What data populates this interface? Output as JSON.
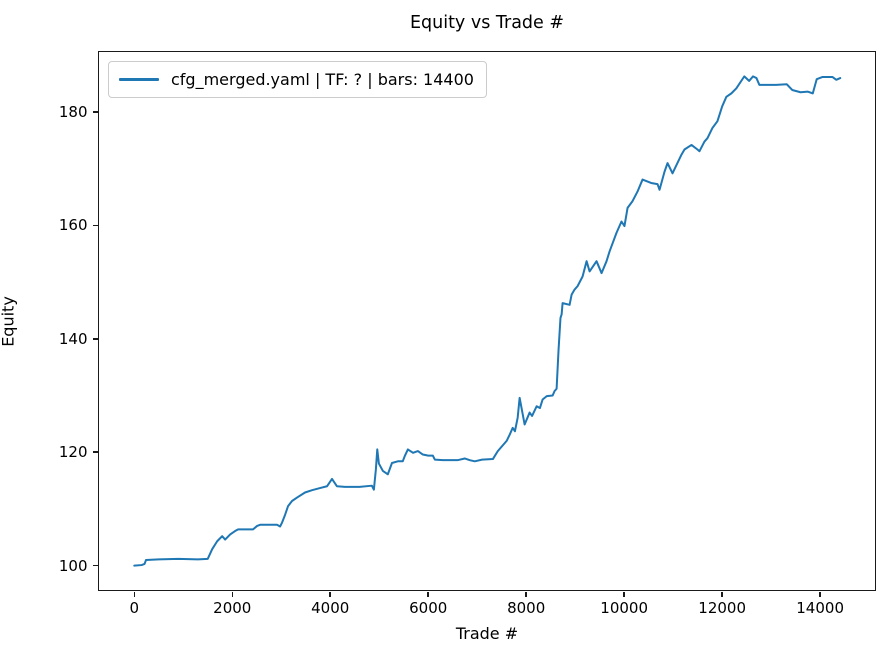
{
  "figure": {
    "title": "Equity vs Trade #",
    "xlabel": "Trade #",
    "ylabel": "Equity",
    "legend": {
      "label": "cfg_merged.yaml | TF: ? | bars: 14400",
      "line_color": "#1f77b4"
    }
  },
  "chart_data": {
    "type": "line",
    "title": "Equity vs Trade #",
    "xlabel": "Trade #",
    "ylabel": "Equity",
    "grid": false,
    "legend_position": "upper left",
    "legend_entries": [
      "cfg_merged.yaml | TF: ? | bars: 14400"
    ],
    "line_color": "#1f77b4",
    "line_width": 2,
    "xlim": [
      -720,
      15120
    ],
    "ylim": [
      95.7,
      190.6
    ],
    "xticks": [
      0,
      2000,
      4000,
      6000,
      8000,
      10000,
      12000,
      14000
    ],
    "yticks": [
      100,
      120,
      140,
      160,
      180
    ],
    "series": [
      {
        "name": "cfg_merged.yaml | TF: ? | bars: 14400",
        "x": [
          1,
          150,
          210,
          240,
          500,
          900,
          1300,
          1500,
          1590,
          1692,
          1794,
          1855,
          1957,
          2058,
          2120,
          2425,
          2507,
          2568,
          2914,
          2976,
          3017,
          3080,
          3139,
          3220,
          3322,
          3485,
          3628,
          3800,
          3934,
          4036,
          4138,
          4300,
          4600,
          4850,
          4891,
          4932,
          4960,
          4993,
          5075,
          5175,
          5260,
          5380,
          5480,
          5520,
          5585,
          5690,
          5790,
          5890,
          6000,
          6095,
          6135,
          6300,
          6600,
          6745,
          6850,
          6950,
          7100,
          7320,
          7420,
          7601,
          7663,
          7724,
          7770,
          7826,
          7866,
          7968,
          8070,
          8120,
          8213,
          8280,
          8335,
          8420,
          8539,
          8580,
          8621,
          8660,
          8700,
          8723,
          8743,
          8886,
          8927,
          8988,
          9049,
          9151,
          9233,
          9294,
          9436,
          9538,
          9640,
          9701,
          9843,
          9945,
          10006,
          10069,
          10171,
          10273,
          10375,
          10550,
          10681,
          10722,
          10824,
          10885,
          10987,
          11170,
          11231,
          11374,
          11496,
          11537,
          11639,
          11700,
          11802,
          11904,
          12000,
          12086,
          12188,
          12290,
          12452,
          12550,
          12630,
          12700,
          12760,
          13100,
          13320,
          13430,
          13600,
          13750,
          13850,
          13930,
          14050,
          14250,
          14330,
          14410
        ],
        "y": [
          100.0,
          100.1,
          100.3,
          101.0,
          101.1,
          101.2,
          101.1,
          101.2,
          102.9,
          104.3,
          105.2,
          104.6,
          105.5,
          106.1,
          106.4,
          106.4,
          107.0,
          107.2,
          107.2,
          106.9,
          107.6,
          109.0,
          110.5,
          111.4,
          112.0,
          112.9,
          113.3,
          113.7,
          114.0,
          115.3,
          114.0,
          113.9,
          113.9,
          114.1,
          113.4,
          117.0,
          120.5,
          118.0,
          116.7,
          116.1,
          118.1,
          118.4,
          118.4,
          119.3,
          120.5,
          119.9,
          120.2,
          119.6,
          119.4,
          119.4,
          118.7,
          118.6,
          118.6,
          118.9,
          118.6,
          118.4,
          118.7,
          118.8,
          120.2,
          122.0,
          123.1,
          124.3,
          123.7,
          126.1,
          129.6,
          124.9,
          127.0,
          126.4,
          128.1,
          127.8,
          129.3,
          129.9,
          130.0,
          130.8,
          131.2,
          138.0,
          143.7,
          144.3,
          146.3,
          146.0,
          147.8,
          148.7,
          149.3,
          151.0,
          153.7,
          151.9,
          153.7,
          151.6,
          153.7,
          155.4,
          158.7,
          160.7,
          159.9,
          163.1,
          164.3,
          166.0,
          168.1,
          167.5,
          167.3,
          166.3,
          169.5,
          171.0,
          169.2,
          172.5,
          173.4,
          174.2,
          173.4,
          173.1,
          174.8,
          175.4,
          177.2,
          178.4,
          181.0,
          182.7,
          183.3,
          184.2,
          186.3,
          185.5,
          186.3,
          186.0,
          184.8,
          184.8,
          184.9,
          183.9,
          183.5,
          183.6,
          183.3,
          185.8,
          186.2,
          186.2,
          185.7,
          186.0
        ]
      }
    ]
  }
}
